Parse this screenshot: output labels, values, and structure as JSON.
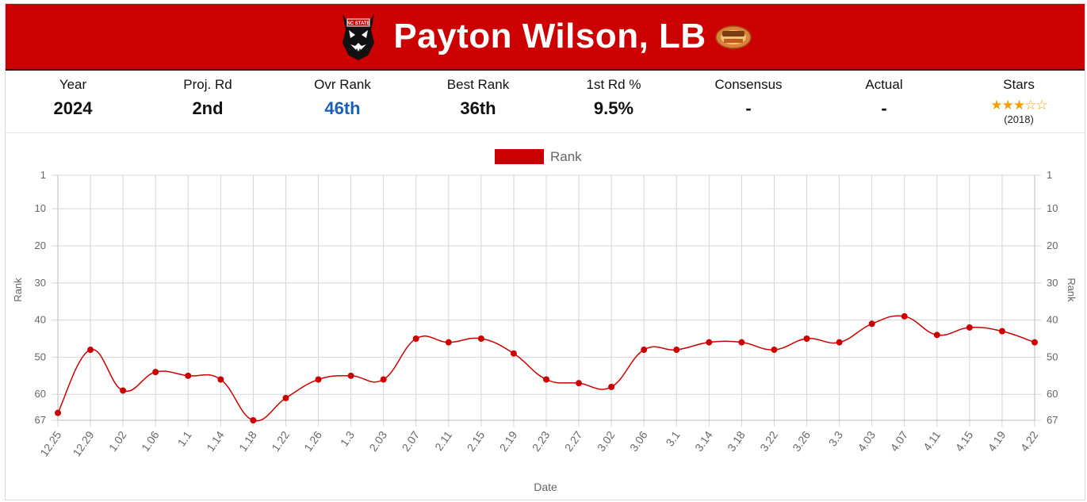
{
  "player": {
    "name": "Payton Wilson, LB",
    "team_logo_icon": "wolf-mascot-icon",
    "bowl_logo_icon": "senior-bowl-icon",
    "banner_color": "#cc0000"
  },
  "stats": [
    {
      "label": "Year",
      "value": "2024"
    },
    {
      "label": "Proj. Rd",
      "value": "2nd"
    },
    {
      "label": "Ovr Rank",
      "value": "46th"
    },
    {
      "label": "Best Rank",
      "value": "36th"
    },
    {
      "label": "1st Rd %",
      "value": "9.5%"
    },
    {
      "label": "Consensus",
      "value": "-"
    },
    {
      "label": "Actual",
      "value": "-"
    },
    {
      "label": "Stars",
      "value": "(2018)",
      "stars_filled": 3,
      "stars_total": 5
    }
  ],
  "chart_data": {
    "type": "line",
    "legend": "Rank",
    "legend_position": "top-center",
    "xlabel": "Date",
    "ylabel": "Rank",
    "y_reversed": true,
    "ylim": [
      1,
      67
    ],
    "yticks": [
      "1",
      "10",
      "20",
      "30",
      "40",
      "50",
      "60",
      "67"
    ],
    "ytick_values": [
      1,
      10,
      20,
      30,
      40,
      50,
      60,
      67
    ],
    "grid": true,
    "line_color": "#cc0000",
    "x": [
      "12.25",
      "12.29",
      "1.02",
      "1.06",
      "1.1",
      "1.14",
      "1.18",
      "1.22",
      "1.26",
      "1.3",
      "2.03",
      "2.07",
      "2.11",
      "2.15",
      "2.19",
      "2.23",
      "2.27",
      "3.02",
      "3.06",
      "3.1",
      "3.14",
      "3.18",
      "3.22",
      "3.26",
      "3.3",
      "4.03",
      "4.07",
      "4.11",
      "4.15",
      "4.19",
      "4.22"
    ],
    "series": [
      {
        "name": "Rank",
        "values": [
          65,
          48,
          59,
          54,
          55,
          56,
          67,
          61,
          56,
          55,
          56,
          45,
          46,
          45,
          49,
          56,
          57,
          58,
          48,
          48,
          46,
          46,
          48,
          45,
          46,
          41,
          39,
          44,
          42,
          43,
          46
        ]
      }
    ]
  }
}
